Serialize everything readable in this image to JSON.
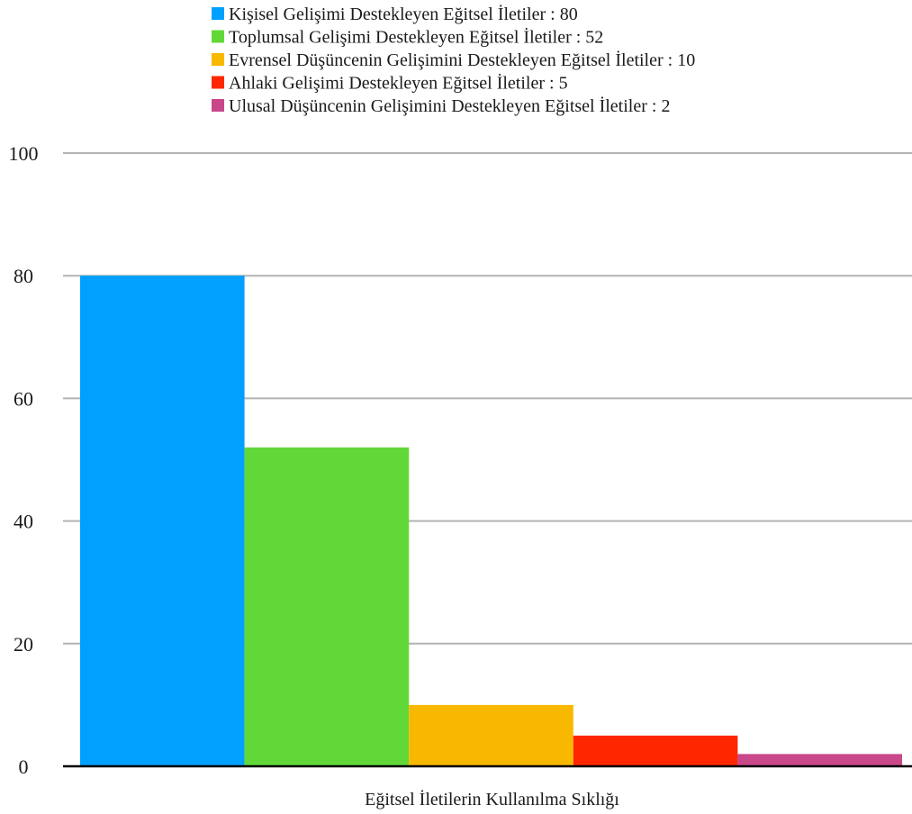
{
  "chart_data": {
    "type": "bar",
    "title": "",
    "xlabel": "Eğitsel İletilerin Kullanılma Sıklığı",
    "ylabel": "",
    "ylim": [
      0,
      100
    ],
    "yticks": [
      0,
      20,
      40,
      60,
      80,
      100
    ],
    "grid": true,
    "legend_position": "top",
    "categories": [
      "Eğitsel İletilerin Kullanılma Sıklığı"
    ],
    "series": [
      {
        "name": "Kişisel Gelişimi Destekleyen Eğitsel İletiler : 80",
        "values": [
          80
        ],
        "color": "#00a0ff"
      },
      {
        "name": "Toplumsal Gelişimi Destekleyen Eğitsel İletiler : 52",
        "values": [
          52
        ],
        "color": "#62d838"
      },
      {
        "name": "Evrensel Düşüncenin Gelişimini Destekleyen Eğitsel İletiler : 10",
        "values": [
          10
        ],
        "color": "#f8b800"
      },
      {
        "name": "Ahlaki Gelişimi Destekleyen Eğitsel İletiler : 5",
        "values": [
          5
        ],
        "color": "#ff2600"
      },
      {
        "name": "Ulusal Düşüncenin Gelişimini Destekleyen Eğitsel İletiler  : 2",
        "values": [
          2
        ],
        "color": "#c9488a"
      }
    ]
  }
}
